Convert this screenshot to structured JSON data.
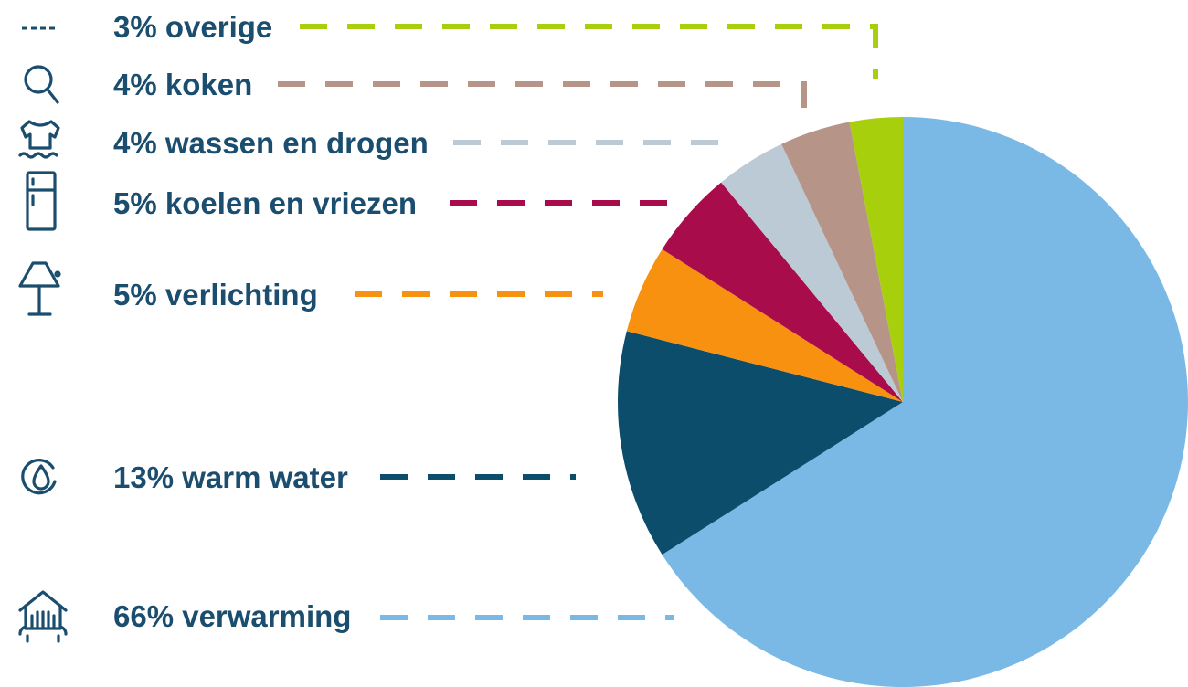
{
  "chart_data": {
    "type": "pie",
    "title": "",
    "slices": [
      {
        "label": "66% verwarming",
        "value": 66,
        "color": "#7ab9e6",
        "icon": "radiator-house-icon"
      },
      {
        "label": "13% warm water",
        "value": 13,
        "color": "#0b4d6b",
        "icon": "water-drop-icon"
      },
      {
        "label": "5% verlichting",
        "value": 5,
        "color": "#f7910f",
        "icon": "lamp-icon"
      },
      {
        "label": "5% koelen en vriezen",
        "value": 5,
        "color": "#a90c4b",
        "icon": "fridge-icon"
      },
      {
        "label": "4% wassen en drogen",
        "value": 4,
        "color": "#bccad5",
        "icon": "shirt-wash-icon"
      },
      {
        "label": "4% koken",
        "value": 4,
        "color": "#b69488",
        "icon": "cooking-icon"
      },
      {
        "label": "3% overige",
        "value": 3,
        "color": "#a8cf0c",
        "icon": "dashed-line-icon"
      }
    ],
    "legend_placement": "left"
  }
}
